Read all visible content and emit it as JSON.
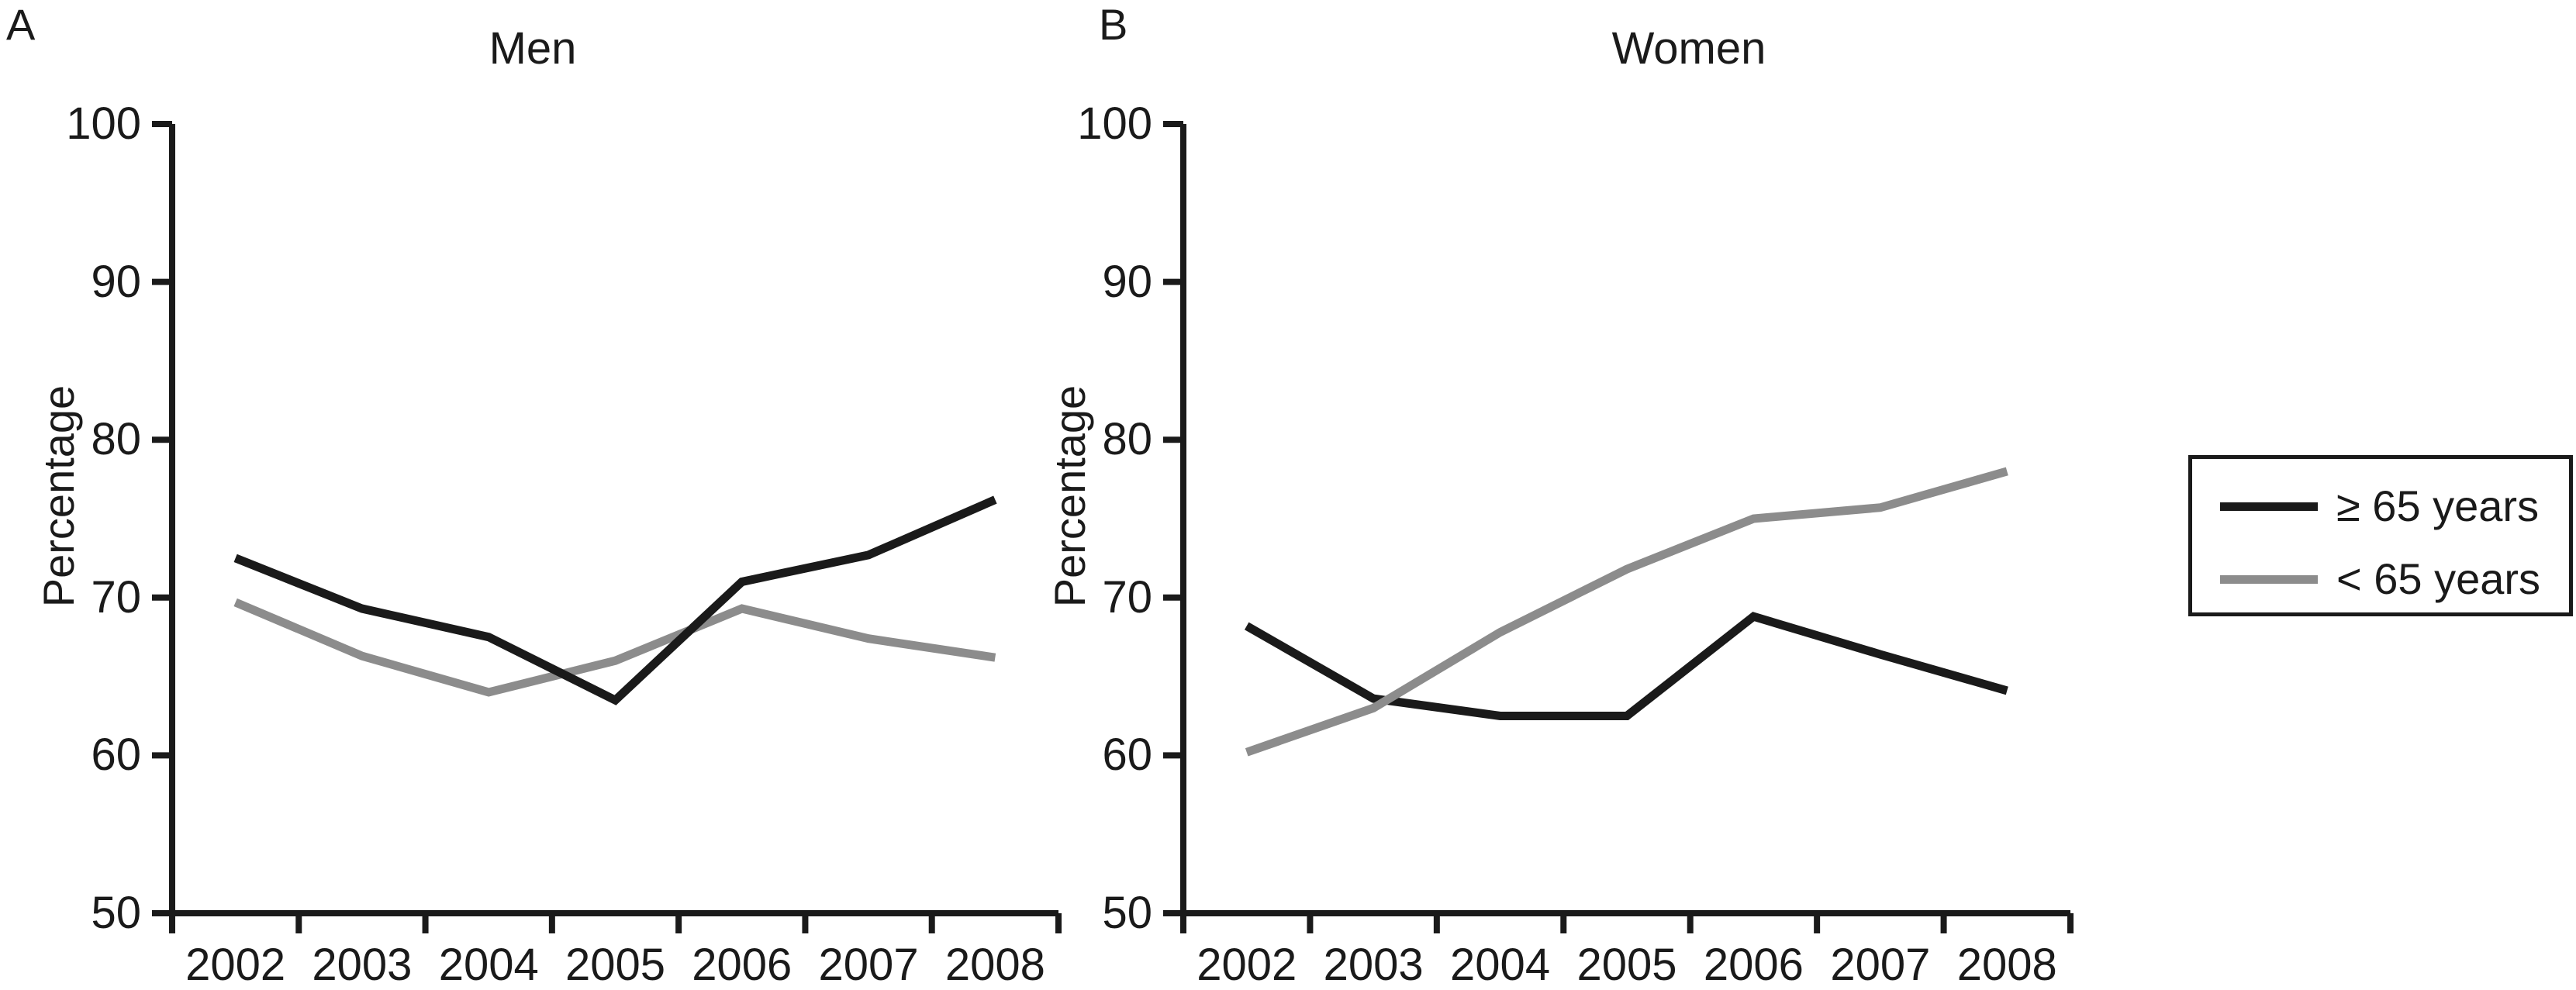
{
  "figure": {
    "background": "#ffffff",
    "text_color": "#1a1a1a",
    "panels": [
      {
        "letter": "A",
        "title": "Men"
      },
      {
        "letter": "B",
        "title": "Women"
      }
    ],
    "ylabel": "Percentage",
    "legend": {
      "position": "right-outside",
      "items": [
        {
          "label": "≥ 65 years",
          "color": "#1a1a1a"
        },
        {
          "label": "< 65 years",
          "color": "#8c8c8c"
        }
      ]
    }
  },
  "chart_data": [
    {
      "type": "line",
      "panel": "A",
      "title": "Men",
      "xlabel": "",
      "ylabel": "Percentage",
      "categories": [
        "2002",
        "2003",
        "2004",
        "2005",
        "2006",
        "2007",
        "2008"
      ],
      "ylim": [
        50,
        100
      ],
      "yticks": [
        100,
        90,
        80,
        70,
        60,
        50
      ],
      "grid": false,
      "series": [
        {
          "name": "≥ 65 years",
          "color": "#1a1a1a",
          "values": [
            72.5,
            69.3,
            67.5,
            63.5,
            71.0,
            72.7,
            76.2
          ]
        },
        {
          "name": "< 65 years",
          "color": "#8c8c8c",
          "values": [
            69.7,
            66.3,
            64.0,
            66.0,
            69.3,
            67.4,
            66.2
          ]
        }
      ],
      "draw_on_top": "≥ 65 years"
    },
    {
      "type": "line",
      "panel": "B",
      "title": "Women",
      "xlabel": "",
      "ylabel": "Percentage",
      "categories": [
        "2002",
        "2003",
        "2004",
        "2005",
        "2006",
        "2007",
        "2008"
      ],
      "ylim": [
        50,
        100
      ],
      "yticks": [
        100,
        90,
        80,
        70,
        60,
        50
      ],
      "grid": false,
      "series": [
        {
          "name": "≥ 65 years",
          "color": "#1a1a1a",
          "values": [
            68.2,
            63.6,
            62.5,
            62.5,
            68.8,
            66.4,
            64.1
          ]
        },
        {
          "name": "< 65 years",
          "color": "#8c8c8c",
          "values": [
            60.2,
            63.0,
            67.8,
            71.8,
            75.0,
            75.7,
            78.0
          ]
        }
      ],
      "draw_on_top": "< 65 years"
    }
  ]
}
